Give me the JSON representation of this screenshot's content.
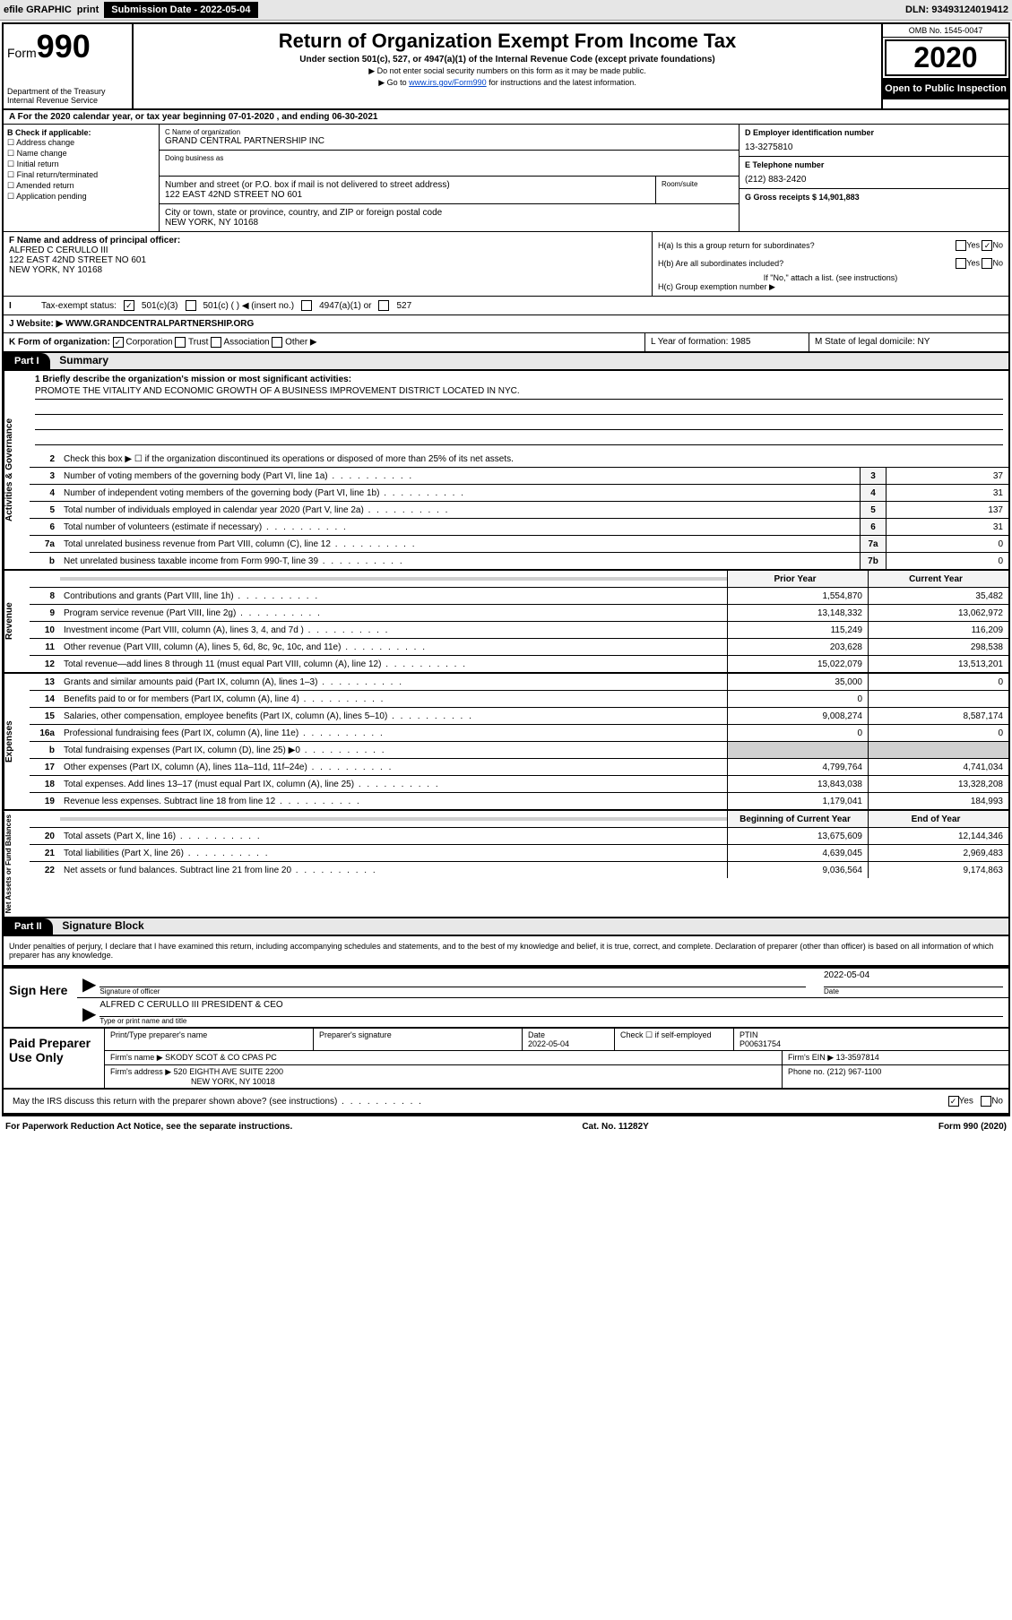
{
  "toolbar": {
    "efile": "efile GRAPHIC",
    "print": "print",
    "submission": "Submission Date - 2022-05-04",
    "dln": "DLN: 93493124019412"
  },
  "header": {
    "form_prefix": "Form",
    "form_number": "990",
    "dept": "Department of the Treasury\nInternal Revenue Service",
    "title": "Return of Organization Exempt From Income Tax",
    "subtitle": "Under section 501(c), 527, or 4947(a)(1) of the Internal Revenue Code (except private foundations)",
    "note1": "Do not enter social security numbers on this form as it may be made public.",
    "note2_pre": "Go to ",
    "note2_link": "www.irs.gov/Form990",
    "note2_post": " for instructions and the latest information.",
    "omb": "OMB No. 1545-0047",
    "year": "2020",
    "inspection": "Open to Public Inspection"
  },
  "row_a": "A For the 2020 calendar year, or tax year beginning 07-01-2020    , and ending 06-30-2021",
  "section_b": {
    "title": "B Check if applicable:",
    "options": [
      "Address change",
      "Name change",
      "Initial return",
      "Final return/terminated",
      "Amended return",
      "Application pending"
    ],
    "c_label": "C Name of organization",
    "c_name": "GRAND CENTRAL PARTNERSHIP INC",
    "dba_label": "Doing business as",
    "addr_label": "Number and street (or P.O. box if mail is not delivered to street address)",
    "addr": "122 EAST 42ND STREET NO 601",
    "room_label": "Room/suite",
    "city_label": "City or town, state or province, country, and ZIP or foreign postal code",
    "city": "NEW YORK, NY  10168",
    "d_label": "D Employer identification number",
    "d_ein": "13-3275810",
    "e_label": "E Telephone number",
    "e_phone": "(212) 883-2420",
    "g_label": "G Gross receipts $ 14,901,883"
  },
  "section_f": {
    "label": "F  Name and address of principal officer:",
    "name": "ALFRED C CERULLO III",
    "addr1": "122 EAST 42ND STREET NO 601",
    "addr2": "NEW YORK, NY  10168"
  },
  "section_h": {
    "ha": "H(a)  Is this a group return for subordinates?",
    "hb": "H(b)  Are all subordinates included?",
    "hb_note": "If \"No,\" attach a list. (see instructions)",
    "hc": "H(c)  Group exemption number ▶",
    "yes": "Yes",
    "no": "No"
  },
  "tax_status": {
    "label": "Tax-exempt status:",
    "opt1": "501(c)(3)",
    "opt2": "501(c) (   ) ◀ (insert no.)",
    "opt3": "4947(a)(1) or",
    "opt4": "527"
  },
  "website": {
    "label": "J    Website: ▶",
    "value": "  WWW.GRANDCENTRALPARTNERSHIP.ORG"
  },
  "row_k": {
    "k": "K Form of organization:",
    "corp": "Corporation",
    "trust": "Trust",
    "assoc": "Association",
    "other": "Other ▶",
    "l": "L Year of formation: 1985",
    "m": "M State of legal domicile: NY"
  },
  "part1": {
    "label": "Part I",
    "title": "Summary"
  },
  "gov": {
    "label": "Activities & Governance",
    "l1": "1  Briefly describe the organization's mission or most significant activities:",
    "mission": "PROMOTE THE VITALITY AND ECONOMIC GROWTH OF A BUSINESS IMPROVEMENT DISTRICT LOCATED IN NYC.",
    "l2": "Check this box ▶ ☐  if the organization discontinued its operations or disposed of more than 25% of its net assets.",
    "rows": [
      {
        "n": "3",
        "d": "Number of voting members of the governing body (Part VI, line 1a)",
        "b": "3",
        "v": "37"
      },
      {
        "n": "4",
        "d": "Number of independent voting members of the governing body (Part VI, line 1b)",
        "b": "4",
        "v": "31"
      },
      {
        "n": "5",
        "d": "Total number of individuals employed in calendar year 2020 (Part V, line 2a)",
        "b": "5",
        "v": "137"
      },
      {
        "n": "6",
        "d": "Total number of volunteers (estimate if necessary)",
        "b": "6",
        "v": "31"
      },
      {
        "n": "7a",
        "d": "Total unrelated business revenue from Part VIII, column (C), line 12",
        "b": "7a",
        "v": "0"
      },
      {
        "n": " b",
        "d": "Net unrelated business taxable income from Form 990-T, line 39",
        "b": "7b",
        "v": "0"
      }
    ]
  },
  "rev": {
    "label": "Revenue",
    "head_prior": "Prior Year",
    "head_curr": "Current Year",
    "rows": [
      {
        "n": "8",
        "d": "Contributions and grants (Part VIII, line 1h)",
        "p": "1,554,870",
        "c": "35,482"
      },
      {
        "n": "9",
        "d": "Program service revenue (Part VIII, line 2g)",
        "p": "13,148,332",
        "c": "13,062,972"
      },
      {
        "n": "10",
        "d": "Investment income (Part VIII, column (A), lines 3, 4, and 7d )",
        "p": "115,249",
        "c": "116,209"
      },
      {
        "n": "11",
        "d": "Other revenue (Part VIII, column (A), lines 5, 6d, 8c, 9c, 10c, and 11e)",
        "p": "203,628",
        "c": "298,538"
      },
      {
        "n": "12",
        "d": "Total revenue—add lines 8 through 11 (must equal Part VIII, column (A), line 12)",
        "p": "15,022,079",
        "c": "13,513,201"
      }
    ]
  },
  "exp": {
    "label": "Expenses",
    "rows": [
      {
        "n": "13",
        "d": "Grants and similar amounts paid (Part IX, column (A), lines 1–3)",
        "p": "35,000",
        "c": "0"
      },
      {
        "n": "14",
        "d": "Benefits paid to or for members (Part IX, column (A), line 4)",
        "p": "0",
        "c": ""
      },
      {
        "n": "15",
        "d": "Salaries, other compensation, employee benefits (Part IX, column (A), lines 5–10)",
        "p": "9,008,274",
        "c": "8,587,174"
      },
      {
        "n": "16a",
        "d": "Professional fundraising fees (Part IX, column (A), line 11e)",
        "p": "0",
        "c": "0"
      },
      {
        "n": " b",
        "d": "Total fundraising expenses (Part IX, column (D), line 25) ▶0",
        "p": "",
        "c": "",
        "grey": true
      },
      {
        "n": "17",
        "d": "Other expenses (Part IX, column (A), lines 11a–11d, 11f–24e)",
        "p": "4,799,764",
        "c": "4,741,034"
      },
      {
        "n": "18",
        "d": "Total expenses. Add lines 13–17 (must equal Part IX, column (A), line 25)",
        "p": "13,843,038",
        "c": "13,328,208"
      },
      {
        "n": "19",
        "d": "Revenue less expenses. Subtract line 18 from line 12",
        "p": "1,179,041",
        "c": "184,993"
      }
    ]
  },
  "net": {
    "label": "Net Assets or Fund Balances",
    "head_beg": "Beginning of Current Year",
    "head_end": "End of Year",
    "rows": [
      {
        "n": "20",
        "d": "Total assets (Part X, line 16)",
        "p": "13,675,609",
        "c": "12,144,346"
      },
      {
        "n": "21",
        "d": "Total liabilities (Part X, line 26)",
        "p": "4,639,045",
        "c": "2,969,483"
      },
      {
        "n": "22",
        "d": "Net assets or fund balances. Subtract line 21 from line 20",
        "p": "9,036,564",
        "c": "9,174,863"
      }
    ]
  },
  "part2": {
    "label": "Part II",
    "title": "Signature Block",
    "declaration": "Under penalties of perjury, I declare that I have examined this return, including accompanying schedules and statements, and to the best of my knowledge and belief, it is true, correct, and complete. Declaration of preparer (other than officer) is based on all information of which preparer has any knowledge."
  },
  "sign": {
    "here": "Sign Here",
    "sig_label": "Signature of officer",
    "date": "2022-05-04",
    "date_label": "Date",
    "name": "ALFRED C CERULLO III  PRESIDENT & CEO",
    "name_label": "Type or print name and title"
  },
  "prep": {
    "label": "Paid Preparer Use Only",
    "h1": "Print/Type preparer's name",
    "h2": "Preparer's signature",
    "h3": "Date",
    "h3v": "2022-05-04",
    "h4": "Check ☐  if self-employed",
    "h5": "PTIN",
    "h5v": "P00631754",
    "firm_label": "Firm's name      ▶",
    "firm": "SKODY SCOT & CO CPAS PC",
    "ein_label": "Firm's EIN ▶",
    "ein": "13-3597814",
    "addr_label": "Firm's address ▶",
    "addr1": "520 EIGHTH AVE SUITE 2200",
    "addr2": "NEW YORK, NY  10018",
    "phone_label": "Phone no.",
    "phone": "(212) 967-1100"
  },
  "discuss": "May the IRS discuss this return with the preparer shown above? (see instructions)",
  "footer": {
    "left": "For Paperwork Reduction Act Notice, see the separate instructions.",
    "mid": "Cat. No. 11282Y",
    "right": "Form 990 (2020)"
  }
}
